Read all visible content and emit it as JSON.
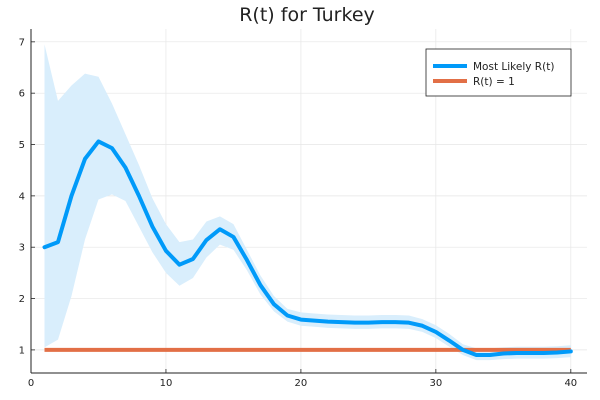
{
  "chart_data": {
    "type": "line",
    "title": "R(t) for Turkey",
    "xlabel": "",
    "ylabel": "",
    "xlim": [
      0,
      41.2
    ],
    "ylim": [
      0.55,
      7.25
    ],
    "x_ticks": [
      0,
      10,
      20,
      30,
      40
    ],
    "y_ticks": [
      1,
      2,
      3,
      4,
      5,
      6,
      7
    ],
    "grid": true,
    "legend_position": "top-right",
    "series": [
      {
        "name": "Most Likely R(t)",
        "color": "#009af9",
        "x": [
          1,
          2,
          3,
          4,
          5,
          6,
          7,
          8,
          9,
          10,
          11,
          12,
          13,
          14,
          15,
          16,
          17,
          18,
          19,
          20,
          21,
          22,
          23,
          24,
          25,
          26,
          27,
          28,
          29,
          30,
          31,
          32,
          33,
          34,
          35,
          36,
          37,
          38,
          39,
          40
        ],
        "values": [
          3.0,
          3.1,
          4.0,
          4.72,
          5.06,
          4.93,
          4.55,
          4.0,
          3.4,
          2.93,
          2.66,
          2.77,
          3.14,
          3.35,
          3.2,
          2.75,
          2.26,
          1.89,
          1.67,
          1.59,
          1.57,
          1.55,
          1.54,
          1.53,
          1.53,
          1.54,
          1.54,
          1.53,
          1.47,
          1.35,
          1.18,
          1.0,
          0.9,
          0.9,
          0.93,
          0.94,
          0.94,
          0.94,
          0.95,
          0.97
        ],
        "band_upper": [
          6.95,
          5.85,
          6.15,
          6.38,
          6.32,
          5.8,
          5.2,
          4.6,
          3.95,
          3.45,
          3.1,
          3.15,
          3.5,
          3.6,
          3.45,
          2.95,
          2.45,
          2.05,
          1.8,
          1.73,
          1.71,
          1.69,
          1.68,
          1.67,
          1.67,
          1.68,
          1.68,
          1.67,
          1.6,
          1.48,
          1.31,
          1.11,
          1.03,
          1.03,
          1.05,
          1.06,
          1.06,
          1.06,
          1.07,
          1.09
        ],
        "band_lower": [
          1.05,
          1.2,
          2.05,
          3.15,
          3.93,
          4.03,
          3.9,
          3.4,
          2.9,
          2.5,
          2.25,
          2.4,
          2.8,
          3.05,
          2.95,
          2.55,
          2.08,
          1.75,
          1.55,
          1.47,
          1.45,
          1.43,
          1.42,
          1.41,
          1.41,
          1.42,
          1.42,
          1.41,
          1.35,
          1.23,
          1.06,
          0.9,
          0.8,
          0.8,
          0.82,
          0.83,
          0.83,
          0.83,
          0.84,
          0.86
        ],
        "band_color": "#d9eefc"
      },
      {
        "name": "R(t) = 1",
        "color": "#e26f46",
        "x": [
          1,
          40
        ],
        "values": [
          1,
          1
        ]
      }
    ]
  }
}
